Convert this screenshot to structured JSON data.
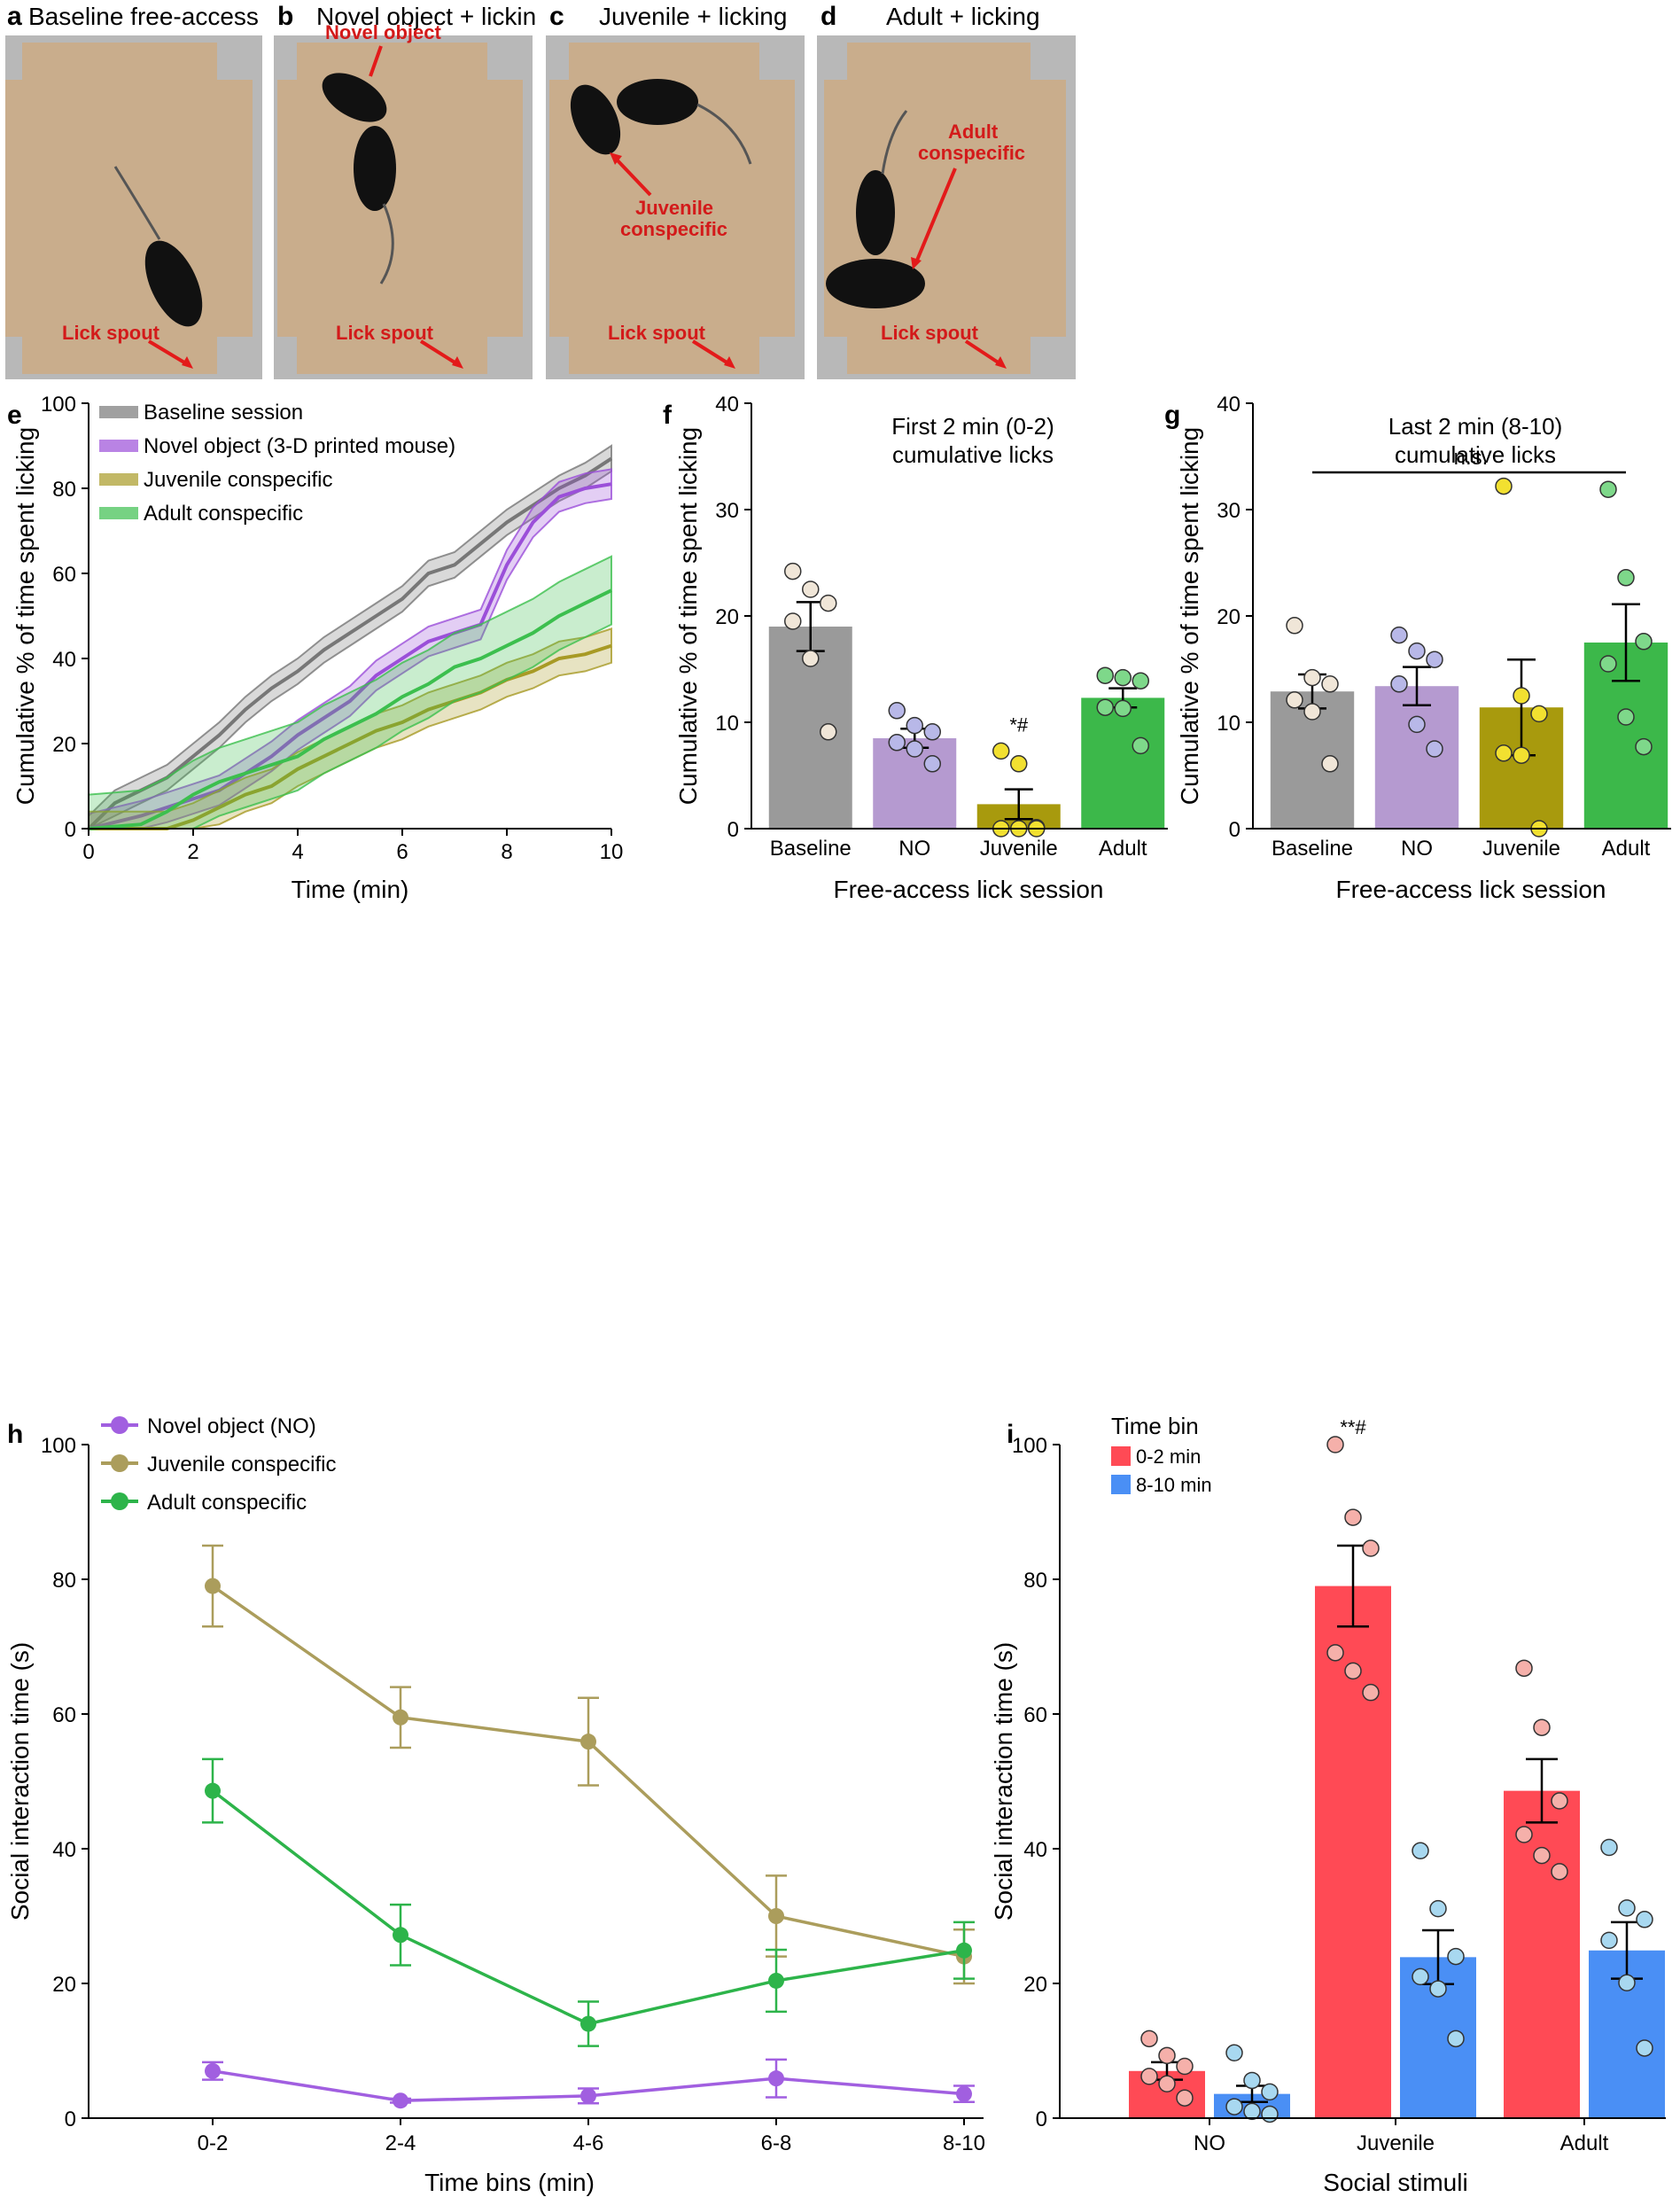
{
  "photos": [
    {
      "letter": "a",
      "title": "Baseline free-access licking",
      "labels": [
        "Lick spout"
      ]
    },
    {
      "letter": "b",
      "title": "Novel object + licking",
      "labels": [
        "Novel object",
        "Lick spout"
      ]
    },
    {
      "letter": "c",
      "title": "Juvenile + licking",
      "labels": [
        "Juvenile",
        "conspecific",
        "Lick spout"
      ]
    },
    {
      "letter": "d",
      "title": "Adult + licking",
      "labels": [
        "Adult",
        "conspecific",
        "Lick spout"
      ]
    }
  ],
  "colors": {
    "baseline": "#888888",
    "novel": "#9b59d6",
    "juvenile": "#a89a3a",
    "adult": "#2fb24a",
    "red": "#ff4a52",
    "blue": "#4a8ef5",
    "label_red": "#d31a1a"
  },
  "chart_data": [
    {
      "id": "e",
      "type": "line",
      "letter": "e",
      "xlabel": "Time (min)",
      "ylabel": "Cumulative % of time spent licking",
      "xlim": [
        0,
        10
      ],
      "ylim": [
        0,
        100
      ],
      "xticks": [
        "0",
        "2",
        "4",
        "6",
        "8",
        "10"
      ],
      "yticks": [
        "0",
        "20",
        "40",
        "60",
        "80",
        "100"
      ],
      "x": [
        0,
        0.5,
        1,
        1.5,
        2,
        2.5,
        3,
        3.5,
        4,
        4.5,
        5,
        5.5,
        6,
        6.5,
        7,
        7.5,
        8,
        8.5,
        9,
        9.5,
        10
      ],
      "series": [
        {
          "name": "Baseline session",
          "color": "#777777",
          "values": [
            0,
            6,
            9,
            12,
            17,
            22,
            28,
            33,
            37,
            42,
            46,
            50,
            54,
            60,
            62,
            67,
            72,
            76,
            80,
            83,
            87
          ],
          "sem": 3
        },
        {
          "name": "Novel object (3-D printed mouse)",
          "color": "#9b4fd9",
          "values": [
            0,
            1.5,
            3,
            5,
            7,
            9,
            13,
            17,
            22,
            26,
            30,
            36,
            40,
            44,
            46,
            48,
            62,
            72,
            78,
            80,
            81
          ],
          "sem": 3.5
        },
        {
          "name": "Juvenile conspecific",
          "color": "#a89a25",
          "values": [
            0,
            0,
            0,
            0,
            2,
            5,
            8,
            10,
            14,
            17,
            20,
            23,
            25,
            28,
            30,
            32,
            35,
            37,
            40,
            41,
            43
          ],
          "sem": 4
        },
        {
          "name": "Adult conspecific",
          "color": "#3cbf4e",
          "values": [
            0,
            0.5,
            1,
            4,
            8,
            11,
            13,
            15,
            17,
            21,
            24,
            27,
            31,
            34,
            38,
            40,
            43,
            46,
            50,
            53,
            56
          ],
          "sem": 8
        }
      ],
      "legend": [
        "Baseline session",
        "Novel object (3-D printed mouse)",
        "Juvenile conspecific",
        "Adult conspecific"
      ]
    },
    {
      "id": "f",
      "type": "bar",
      "letter": "f",
      "title": [
        "First 2 min (0-2)",
        "cumulative licks"
      ],
      "xlabel": "Free-access lick session",
      "ylabel": "Cumulative % of time spent licking",
      "ylim": [
        0,
        40
      ],
      "yticks": [
        "0",
        "10",
        "20",
        "30",
        "40"
      ],
      "categories": [
        "Baseline",
        "NO",
        "Juvenile",
        "Adult"
      ],
      "values": [
        19,
        8.5,
        2.3,
        12.3
      ],
      "sem": [
        2.3,
        0.9,
        1.4,
        0.9
      ],
      "points": [
        [
          24.2,
          22.5,
          21.2,
          19.5,
          16,
          9.1
        ],
        [
          11.1,
          9.7,
          9.1,
          8.1,
          7.5,
          6.1
        ],
        [
          7.3,
          6.1,
          0.1,
          0,
          0,
          0
        ],
        [
          14.4,
          14.2,
          13.9,
          11.4,
          11.3,
          7.8
        ]
      ],
      "colors": [
        "#9a9a9a",
        "#b59ad0",
        "#a89a0d",
        "#3cb84a"
      ],
      "dotcolors": [
        "#f0e6d8",
        "#b8b8e8",
        "#f2e030",
        "#7ed88a"
      ],
      "annotation": "*#"
    },
    {
      "id": "g",
      "type": "bar",
      "letter": "g",
      "title": [
        "Last 2 min (8-10)",
        "cumulative licks"
      ],
      "xlabel": "Free-access lick session",
      "ylabel": "Cumulative % of time spent licking",
      "ylim": [
        0,
        40
      ],
      "yticks": [
        "0",
        "10",
        "20",
        "30",
        "40"
      ],
      "categories": [
        "Baseline",
        "NO",
        "Juvenile",
        "Adult"
      ],
      "values": [
        12.9,
        13.4,
        11.4,
        17.5
      ],
      "sem": [
        1.6,
        1.8,
        4.5,
        3.6
      ],
      "points": [
        [
          19.1,
          14.2,
          13.6,
          12.1,
          11,
          6.1
        ],
        [
          18.2,
          16.7,
          15.9,
          13.6,
          9.8,
          7.5
        ],
        [
          32.2,
          12.5,
          10.8,
          7.1,
          6.9,
          0
        ],
        [
          31.9,
          23.6,
          17.6,
          15.5,
          10.5,
          7.7
        ]
      ],
      "colors": [
        "#9a9a9a",
        "#b59ad0",
        "#a89a0d",
        "#3cb84a"
      ],
      "dotcolors": [
        "#f0e6d8",
        "#b8b8e8",
        "#f2e030",
        "#7ed88a"
      ],
      "annotation": "n.s."
    },
    {
      "id": "h",
      "type": "line",
      "letter": "h",
      "xlabel": "Time bins (min)",
      "ylabel": "Social interaction time (s)",
      "ylim": [
        0,
        100
      ],
      "yticks": [
        "0",
        "20",
        "40",
        "60",
        "80",
        "100"
      ],
      "categories": [
        "0-2",
        "2-4",
        "4-6",
        "6-8",
        "8-10"
      ],
      "series": [
        {
          "name": "Novel object (NO)",
          "color": "#a15fe0",
          "values": [
            7,
            2.6,
            3.3,
            5.9,
            3.6
          ],
          "sem": [
            1.3,
            0.3,
            1.1,
            2.8,
            1.2
          ]
        },
        {
          "name": "Juvenile conspecific",
          "color": "#ab9d5c",
          "values": [
            79,
            59.5,
            55.9,
            30,
            24
          ],
          "sem": [
            6,
            4.5,
            6.5,
            6,
            4
          ]
        },
        {
          "name": "Adult conspecific",
          "color": "#2db44a",
          "values": [
            48.6,
            27.2,
            14,
            20.4,
            24.9
          ],
          "sem": [
            4.7,
            4.5,
            3.3,
            4.6,
            4.2
          ]
        }
      ]
    },
    {
      "id": "i",
      "type": "bar",
      "letter": "i",
      "xlabel": "Social stimuli",
      "ylabel": "Social interaction time (s)",
      "ylim": [
        0,
        100
      ],
      "yticks": [
        "0",
        "20",
        "40",
        "60",
        "80",
        "100"
      ],
      "categories": [
        "NO",
        "Juvenile",
        "Adult"
      ],
      "legend_title": "Time bin",
      "series": [
        {
          "name": "0-2 min",
          "color": "#ff4a55",
          "dot": "#f5b0aa",
          "values": [
            7,
            79,
            48.6
          ],
          "sem": [
            1.3,
            6,
            4.7
          ],
          "points": [
            [
              11.8,
              9.3,
              7.7,
              6.2,
              5.1,
              3
            ],
            [
              100,
              89.2,
              84.6,
              69.1,
              66.4,
              63.2
            ],
            [
              66.8,
              58,
              47.1,
              42.1,
              39,
              36.6
            ]
          ]
        },
        {
          "name": "8-10 min",
          "color": "#4a8ff5",
          "dot": "#a8d8f0",
          "values": [
            3.6,
            23.9,
            24.9
          ],
          "sem": [
            1.2,
            4,
            4.2
          ],
          "points": [
            [
              9.7,
              5.6,
              3.9,
              1.7,
              1,
              0.6
            ],
            [
              39.7,
              31.1,
              24,
              21,
              19.2,
              11.8
            ],
            [
              40.2,
              31.2,
              29.5,
              26.4,
              20.1,
              10.4
            ]
          ]
        }
      ],
      "annotation": "**#"
    }
  ]
}
